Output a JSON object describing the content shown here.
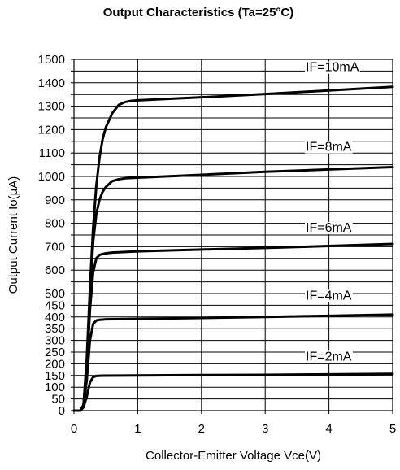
{
  "chart_data": {
    "type": "line",
    "title": "Output Characteristics (Ta=25°C)",
    "xlabel": "Collector-Emitter Voltage Vce(V)",
    "ylabel": "Output Current Io(μA)",
    "xlim": [
      0,
      5
    ],
    "ylim": [
      0,
      1500
    ],
    "x_ticks": [
      0,
      1,
      2,
      3,
      4,
      5
    ],
    "y_ticks": [
      0,
      50,
      100,
      150,
      200,
      250,
      300,
      350,
      400,
      450,
      500,
      550,
      600,
      650,
      700,
      750,
      800,
      850,
      900,
      950,
      1000,
      1050,
      1100,
      1150,
      1200,
      1250,
      1300,
      1350,
      1400,
      1450,
      1500
    ],
    "y_tick_labels_shown": [
      0,
      50,
      100,
      150,
      200,
      250,
      300,
      350,
      400,
      450,
      500,
      600,
      700,
      800,
      900,
      1000,
      1100,
      1200,
      1300,
      1400,
      1500
    ],
    "grid": true,
    "line_color": "#000000",
    "series": [
      {
        "name": "IF=2mA",
        "x": [
          0,
          0.1,
          0.15,
          0.2,
          0.25,
          0.3,
          0.35,
          0.4,
          1,
          2,
          3,
          4,
          5
        ],
        "y": [
          0,
          0,
          15,
          60,
          120,
          143,
          148,
          149,
          150,
          152,
          153,
          155,
          157
        ]
      },
      {
        "name": "IF=4mA",
        "x": [
          0,
          0.1,
          0.15,
          0.2,
          0.25,
          0.3,
          0.35,
          0.4,
          0.5,
          1,
          2,
          3,
          4,
          5
        ],
        "y": [
          0,
          0,
          20,
          130,
          300,
          370,
          385,
          388,
          390,
          392,
          396,
          400,
          405,
          410
        ]
      },
      {
        "name": "IF=6mA",
        "x": [
          0,
          0.1,
          0.15,
          0.2,
          0.25,
          0.3,
          0.35,
          0.4,
          0.5,
          0.6,
          1,
          2,
          3,
          4,
          5
        ],
        "y": [
          0,
          0,
          25,
          180,
          430,
          590,
          650,
          665,
          672,
          675,
          680,
          688,
          695,
          703,
          712
        ]
      },
      {
        "name": "IF=8mA",
        "x": [
          0,
          0.1,
          0.15,
          0.2,
          0.25,
          0.3,
          0.35,
          0.4,
          0.45,
          0.5,
          0.6,
          0.7,
          0.8,
          1,
          2,
          3,
          4,
          5
        ],
        "y": [
          0,
          0,
          25,
          200,
          480,
          720,
          840,
          900,
          935,
          955,
          980,
          988,
          992,
          995,
          1007,
          1020,
          1030,
          1040
        ]
      },
      {
        "name": "IF=10mA",
        "x": [
          0,
          0.1,
          0.15,
          0.2,
          0.25,
          0.3,
          0.35,
          0.4,
          0.45,
          0.5,
          0.6,
          0.7,
          0.8,
          0.9,
          1,
          2,
          3,
          4,
          5
        ],
        "y": [
          0,
          0,
          25,
          220,
          520,
          780,
          960,
          1080,
          1160,
          1210,
          1270,
          1305,
          1318,
          1323,
          1325,
          1338,
          1352,
          1367,
          1383
        ]
      }
    ]
  }
}
